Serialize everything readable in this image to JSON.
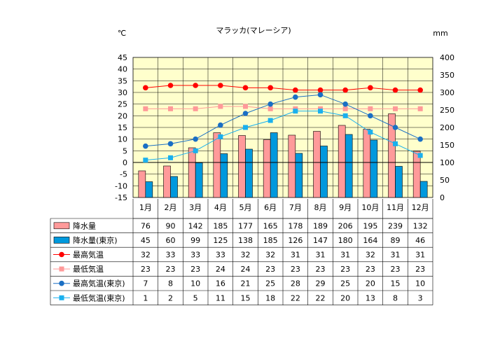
{
  "chart_data": {
    "type": "bar",
    "title": "マラッカ(マレーシア)",
    "left_unit": "℃",
    "right_unit": "mm",
    "left_ticks": [
      "45",
      "40",
      "35",
      "30",
      "25",
      "20",
      "15",
      "10",
      "5",
      "0",
      "-5",
      "-10",
      "-15"
    ],
    "right_ticks": [
      "400",
      "350",
      "300",
      "250",
      "200",
      "150",
      "100",
      "50",
      "0"
    ],
    "left_axis_range": [
      -15,
      45
    ],
    "right_axis_range": [
      0,
      400
    ],
    "grid": true,
    "legend_placement": "data table below chart",
    "categories": [
      "1月",
      "2月",
      "3月",
      "4月",
      "5月",
      "6月",
      "7月",
      "8月",
      "9月",
      "10月",
      "11月",
      "12月"
    ],
    "series": [
      {
        "name": "降水量",
        "kind": "bar",
        "axis": "right",
        "color": "#ff9a9a",
        "values": [
          76,
          90,
          142,
          185,
          177,
          165,
          178,
          189,
          206,
          195,
          239,
          132
        ]
      },
      {
        "name": "降水量(東京)",
        "kind": "bar",
        "axis": "right",
        "color": "#0099dd",
        "values": [
          45,
          60,
          99,
          125,
          138,
          185,
          126,
          147,
          180,
          164,
          89,
          46
        ]
      },
      {
        "name": "最高気温",
        "kind": "line",
        "axis": "left",
        "color": "#ff0000",
        "marker": "circle",
        "values": [
          32,
          33,
          33,
          33,
          32,
          32,
          31,
          31,
          31,
          32,
          31,
          31
        ]
      },
      {
        "name": "最低気温",
        "kind": "line",
        "axis": "left",
        "color": "#ff9999",
        "marker": "square",
        "values": [
          23,
          23,
          23,
          24,
          24,
          23,
          23,
          23,
          23,
          23,
          23,
          23
        ]
      },
      {
        "name": "最高気温(東京)",
        "kind": "line",
        "axis": "left",
        "color": "#1a6fc4",
        "marker": "circle",
        "values": [
          7,
          8,
          10,
          16,
          21,
          25,
          28,
          29,
          25,
          20,
          15,
          10
        ]
      },
      {
        "name": "最低気温(東京)",
        "kind": "line",
        "axis": "left",
        "color": "#1ab0ee",
        "marker": "square",
        "values": [
          1,
          2,
          5,
          11,
          15,
          18,
          22,
          22,
          20,
          13,
          8,
          3
        ]
      }
    ],
    "table_rows": [
      [
        "76",
        "90",
        "142",
        "185",
        "177",
        "165",
        "178",
        "189",
        "206",
        "195",
        "239",
        "132"
      ],
      [
        "45",
        "60",
        "99",
        "125",
        "138",
        "185",
        "126",
        "147",
        "180",
        "164",
        "89",
        "46"
      ],
      [
        "32",
        "33",
        "33",
        "33",
        "32",
        "32",
        "31",
        "31",
        "31",
        "32",
        "31",
        "31"
      ],
      [
        "23",
        "23",
        "23",
        "24",
        "24",
        "23",
        "23",
        "23",
        "23",
        "23",
        "23",
        "23"
      ],
      [
        "7",
        "8",
        "10",
        "16",
        "21",
        "25",
        "28",
        "29",
        "25",
        "20",
        "15",
        "10"
      ],
      [
        "1",
        "2",
        "5",
        "11",
        "15",
        "18",
        "22",
        "22",
        "20",
        "13",
        "8",
        "3"
      ]
    ],
    "plot_background": "#ffffcc"
  }
}
